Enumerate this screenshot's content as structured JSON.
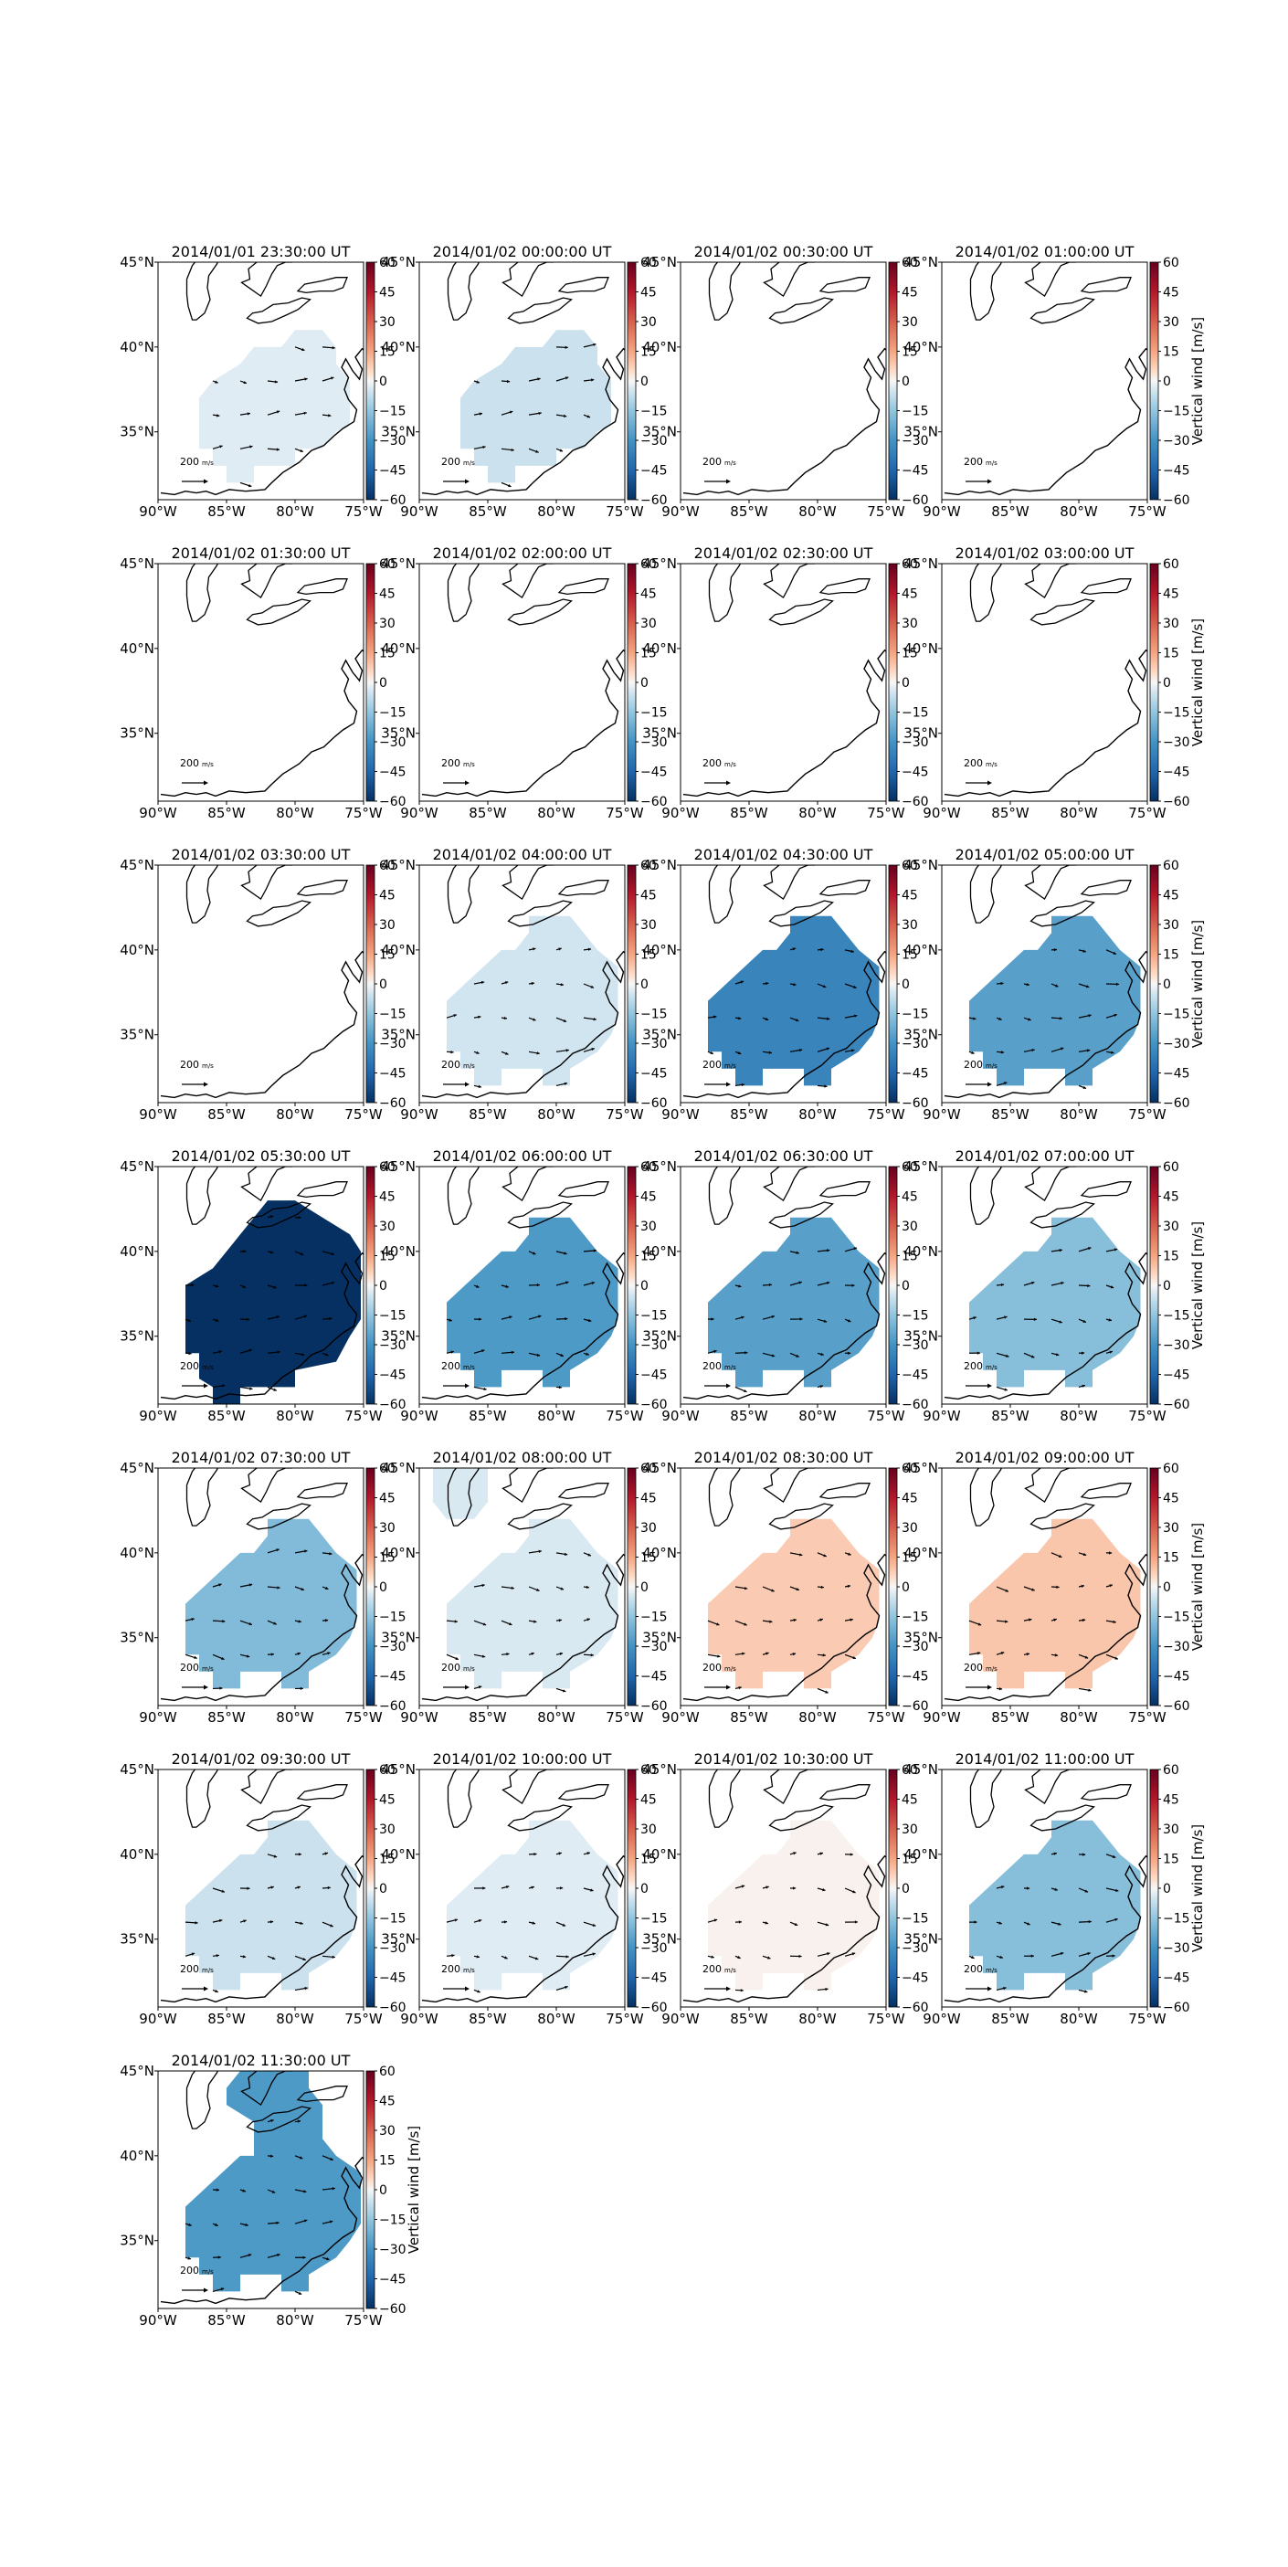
{
  "chart_data": {
    "type": "heatmap",
    "units": "m/s",
    "colorbar": {
      "label": "Vertical wind [m/s]",
      "ticks": [
        60,
        45,
        30,
        15,
        0,
        -15,
        -30,
        -45,
        -60
      ],
      "vmin": -60,
      "vmax": 60,
      "colormap": "diverging red-white-blue",
      "colors": {
        "high": "#67001f",
        "mid": "#f7f7f7",
        "low": "#053061"
      }
    },
    "axes": {
      "lon_ticks": [
        "90°W",
        "85°W",
        "80°W",
        "75°W"
      ],
      "lat_ticks": [
        "45°N",
        "40°N",
        "35°N"
      ],
      "lon_range": [
        -90,
        -75
      ],
      "lat_range": [
        31,
        45
      ]
    },
    "reference_vector_label": "200",
    "reference_vector_unit": "m/s",
    "panels": [
      {
        "title": "2014/01/01 23:30:00 UT",
        "value": -3,
        "region": "A",
        "vectors": true
      },
      {
        "title": "2014/01/02 00:00:00 UT",
        "value": -6,
        "region": "A",
        "vectors": true
      },
      {
        "title": "2014/01/02 00:30:00 UT",
        "value": null,
        "region": "none",
        "vectors": false
      },
      {
        "title": "2014/01/02 01:00:00 UT",
        "value": null,
        "region": "none",
        "vectors": false
      },
      {
        "title": "2014/01/02 01:30:00 UT",
        "value": null,
        "region": "none",
        "vectors": false
      },
      {
        "title": "2014/01/02 02:00:00 UT",
        "value": null,
        "region": "none",
        "vectors": false
      },
      {
        "title": "2014/01/02 02:30:00 UT",
        "value": null,
        "region": "none",
        "vectors": false
      },
      {
        "title": "2014/01/02 03:00:00 UT",
        "value": null,
        "region": "none",
        "vectors": false
      },
      {
        "title": "2014/01/02 03:30:00 UT",
        "value": null,
        "region": "none",
        "vectors": false
      },
      {
        "title": "2014/01/02 04:00:00 UT",
        "value": -5,
        "region": "B",
        "vectors": true
      },
      {
        "title": "2014/01/02 04:30:00 UT",
        "value": -35,
        "region": "B",
        "vectors": true
      },
      {
        "title": "2014/01/02 05:00:00 UT",
        "value": -26,
        "region": "B",
        "vectors": true
      },
      {
        "title": "2014/01/02 05:30:00 UT",
        "value": -60,
        "region": "C",
        "vectors": true
      },
      {
        "title": "2014/01/02 06:00:00 UT",
        "value": -28,
        "region": "B",
        "vectors": true
      },
      {
        "title": "2014/01/02 06:30:00 UT",
        "value": -26,
        "region": "B",
        "vectors": true
      },
      {
        "title": "2014/01/02 07:00:00 UT",
        "value": -17,
        "region": "B",
        "vectors": true
      },
      {
        "title": "2014/01/02 07:30:00 UT",
        "value": -18,
        "region": "B",
        "vectors": true
      },
      {
        "title": "2014/01/02 08:00:00 UT",
        "value": -4,
        "region": "D",
        "vectors": true
      },
      {
        "title": "2014/01/02 08:30:00 UT",
        "value": 8,
        "region": "B",
        "vectors": true
      },
      {
        "title": "2014/01/02 09:00:00 UT",
        "value": 9,
        "region": "B",
        "vectors": true
      },
      {
        "title": "2014/01/02 09:30:00 UT",
        "value": -6,
        "region": "B",
        "vectors": true
      },
      {
        "title": "2014/01/02 10:00:00 UT",
        "value": -3,
        "region": "B",
        "vectors": true
      },
      {
        "title": "2014/01/02 10:30:00 UT",
        "value": 1,
        "region": "B",
        "vectors": true
      },
      {
        "title": "2014/01/02 11:00:00 UT",
        "value": -17,
        "region": "B",
        "vectors": true
      },
      {
        "title": "2014/01/02 11:30:00 UT",
        "value": -28,
        "region": "E",
        "vectors": true
      }
    ]
  }
}
